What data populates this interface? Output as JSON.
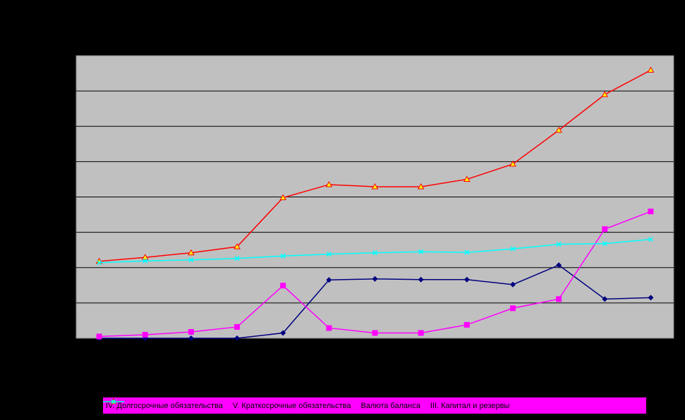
{
  "chart_data": {
    "type": "line",
    "x": [
      "1",
      "2",
      "3",
      "4",
      "5",
      "6",
      "7",
      "8",
      "9",
      "10",
      "11",
      "12",
      "13"
    ],
    "ylim": [
      0,
      8
    ],
    "grid": true,
    "plot_background": "#c0c0c0",
    "legend_position": "bottom",
    "series": [
      {
        "name": "IV. Долгосрочные обязательства",
        "color": "#000080",
        "marker": "diamond",
        "values": [
          0.0,
          0.0,
          0.0,
          0.0,
          0.15,
          1.65,
          1.68,
          1.66,
          1.66,
          1.52,
          2.07,
          1.11,
          1.15
        ]
      },
      {
        "name": "V. Краткосрочные обязательства",
        "color": "#ff00ff",
        "marker": "square",
        "values": [
          0.05,
          0.1,
          0.18,
          0.32,
          1.49,
          0.29,
          0.15,
          0.15,
          0.38,
          0.85,
          1.11,
          3.09,
          3.59
        ]
      },
      {
        "name": "Валюта баланса",
        "color": "#ff0000",
        "marker": "triangle",
        "values": [
          2.18,
          2.29,
          2.42,
          2.59,
          3.98,
          4.35,
          4.29,
          4.29,
          4.5,
          4.93,
          5.89,
          6.9,
          7.59
        ]
      },
      {
        "name": "III. Капитал и резервы",
        "color": "#00ffff",
        "marker": "x",
        "values": [
          2.14,
          2.19,
          2.22,
          2.26,
          2.33,
          2.38,
          2.42,
          2.45,
          2.43,
          2.53,
          2.66,
          2.68,
          2.8
        ]
      }
    ]
  }
}
